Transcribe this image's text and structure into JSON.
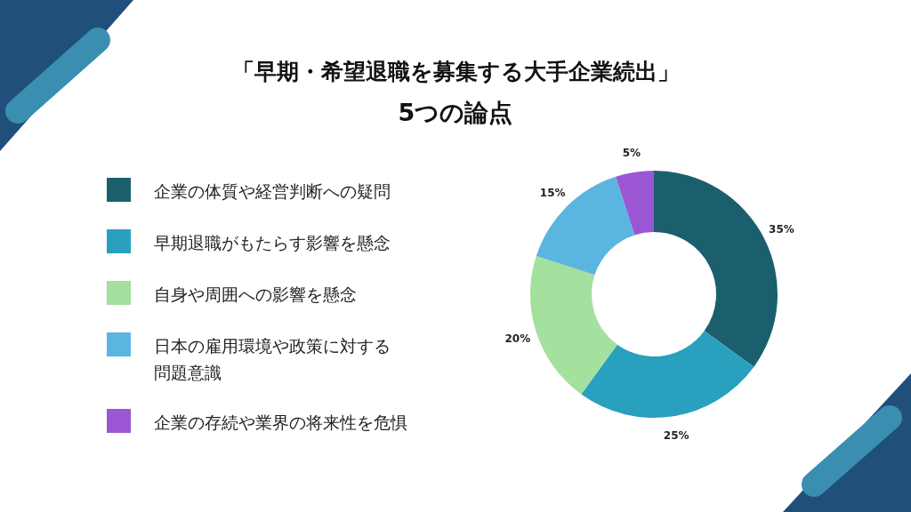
{
  "chart_data": {
    "type": "donut",
    "title": "「早期・希望退職を募集する大手企業続出」",
    "subtitle": "5つの論点",
    "categories": [
      "企業の体質や経営判断への疑問",
      "早期退職がもたらす影響を懸念",
      "自身や周囲への影響を懸念",
      "日本の雇用環境や政策に対する問題意識",
      "企業の存続や業界の将来性を危惧"
    ],
    "values": [
      35,
      25,
      20,
      15,
      5
    ],
    "colors": [
      "#1b5f6e",
      "#2aa0bf",
      "#a4e09e",
      "#5ab5e0",
      "#9b57d3"
    ],
    "value_labels": [
      "35%",
      "25%",
      "20%",
      "15%",
      "5%"
    ],
    "legend": "left"
  }
}
